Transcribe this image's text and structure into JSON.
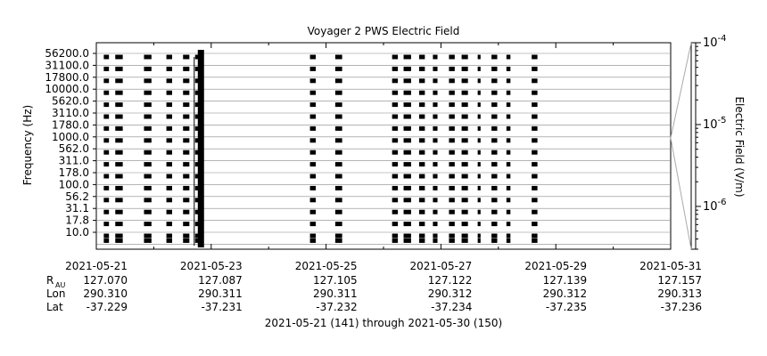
{
  "chart_data": {
    "type": "heatmap",
    "title": "Voyager 2 PWS Electric Field",
    "ylabel": "Frequency (Hz)",
    "colorbar_label": "Electric Field (V/m)",
    "colorbar_scale": "log",
    "colorbar_ticks": [
      {
        "value": 0.0001,
        "base": "10",
        "exp": "-4"
      },
      {
        "value": 1e-05,
        "base": "10",
        "exp": "-5"
      },
      {
        "value": 1e-06,
        "base": "10",
        "exp": "-6"
      }
    ],
    "colorbar_range": [
      3e-07,
      0.0001
    ],
    "frequency_channels": [
      "56200.0",
      "31100.0",
      "17800.0",
      "10000.0",
      "5620.0",
      "3110.0",
      "1780.0",
      "1000.0",
      "562.0",
      "311.0",
      "178.0",
      "100.0",
      "56.2",
      "31.1",
      "17.8",
      "10.0"
    ],
    "x_range": [
      "2021-05-21",
      "2021-05-31"
    ],
    "x_ticks": [
      "2021-05-21",
      "2021-05-23",
      "2021-05-25",
      "2021-05-27",
      "2021-05-29",
      "2021-05-31"
    ],
    "ephemeris": {
      "rows": [
        {
          "label": "R",
          "sub": "AU",
          "values": [
            "127.070",
            "127.087",
            "127.105",
            "127.122",
            "127.139",
            "127.157"
          ]
        },
        {
          "label": "Lon",
          "sub": "",
          "values": [
            "290.310",
            "290.311",
            "290.311",
            "290.312",
            "290.312",
            "290.313"
          ]
        },
        {
          "label": "Lat",
          "sub": "",
          "values": [
            "-37.229",
            "-37.231",
            "-37.232",
            "-37.234",
            "-37.235",
            "-37.236"
          ]
        }
      ]
    },
    "footer": "2021-05-21 (141) through 2021-05-30 (150)",
    "data_segments_days": [
      {
        "start": 0.13,
        "end": 0.22
      },
      {
        "start": 0.33,
        "end": 0.46
      },
      {
        "start": 0.83,
        "end": 0.96
      },
      {
        "start": 1.22,
        "end": 1.32
      },
      {
        "start": 1.51,
        "end": 1.62
      },
      {
        "start": 1.72,
        "end": 1.86,
        "dense": true
      },
      {
        "start": 3.72,
        "end": 3.82
      },
      {
        "start": 4.16,
        "end": 4.28
      },
      {
        "start": 5.15,
        "end": 5.25
      },
      {
        "start": 5.35,
        "end": 5.48
      },
      {
        "start": 5.62,
        "end": 5.72
      },
      {
        "start": 5.86,
        "end": 5.94
      },
      {
        "start": 6.14,
        "end": 6.24
      },
      {
        "start": 6.36,
        "end": 6.47
      },
      {
        "start": 6.64,
        "end": 6.69
      },
      {
        "start": 6.88,
        "end": 6.98
      },
      {
        "start": 7.14,
        "end": 7.21
      },
      {
        "start": 7.58,
        "end": 7.68
      }
    ],
    "colors": {
      "data": "#000000",
      "grid": "#888888",
      "background": "#ffffff"
    }
  }
}
